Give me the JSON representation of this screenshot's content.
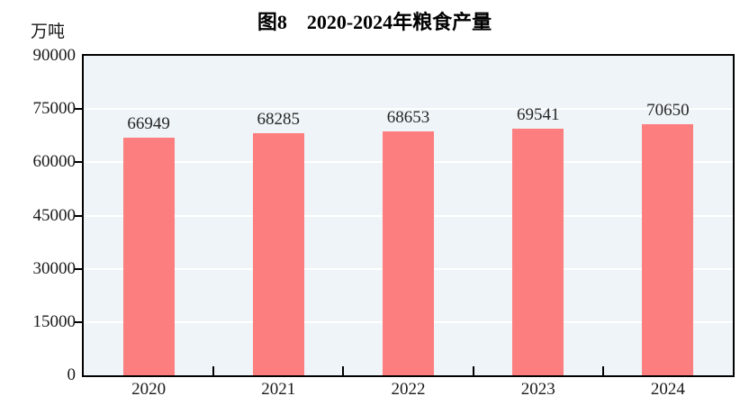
{
  "title": "图8　2020-2024年粮食产量",
  "unit_label": "万吨",
  "colors": {
    "bar": "#fd7e7e",
    "plot_background": "#eef4f8",
    "gridline": "#ffffff",
    "axis": "#000000",
    "text": "#1a1a1a"
  },
  "chart_data": {
    "type": "bar",
    "title": "图8　2020-2024年粮食产量",
    "categories": [
      "2020",
      "2021",
      "2022",
      "2023",
      "2024"
    ],
    "values": [
      66949,
      68285,
      68653,
      69541,
      70650
    ],
    "value_labels": [
      "66949",
      "68285",
      "68653",
      "69541",
      "70650"
    ],
    "xlabel": "",
    "ylabel": "万吨",
    "ylim": [
      0,
      90000
    ],
    "yticks": [
      0,
      15000,
      30000,
      45000,
      60000,
      75000,
      90000
    ],
    "ytick_labels": [
      "0",
      "15000",
      "30000",
      "45000",
      "60000",
      "75000",
      "90000"
    ],
    "grid": "horizontal white gridlines at yticks",
    "legend": "none"
  }
}
